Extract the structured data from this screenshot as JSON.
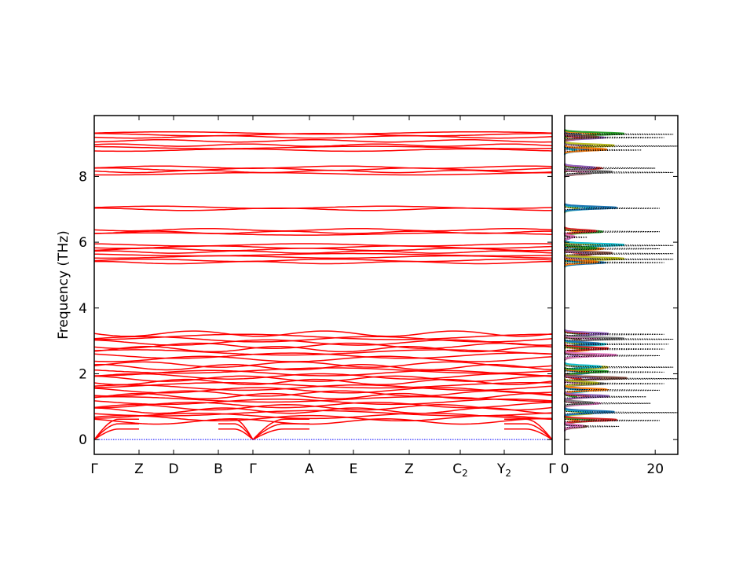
{
  "chart_data": [
    {
      "type": "line",
      "ylabel": "Frequency (THz)",
      "ylim": [
        -0.45,
        9.85
      ],
      "y_ticks": [
        0,
        2,
        4,
        6,
        8
      ],
      "x_tick_labels": [
        {
          "base": "Γ",
          "sub": ""
        },
        {
          "base": "Z",
          "sub": ""
        },
        {
          "base": "D",
          "sub": ""
        },
        {
          "base": "B",
          "sub": ""
        },
        {
          "base": "Γ",
          "sub": ""
        },
        {
          "base": "A",
          "sub": ""
        },
        {
          "base": "E",
          "sub": ""
        },
        {
          "base": "Z",
          "sub": ""
        },
        {
          "base": "C",
          "sub": "2"
        },
        {
          "base": "Y",
          "sub": "2"
        },
        {
          "base": "Γ",
          "sub": ""
        }
      ],
      "band_color": "#ff0000",
      "zero_line_color": "#0000ff",
      "band_levels": [
        9.32,
        9.27,
        9.2,
        9.08,
        8.95,
        8.88,
        8.8,
        8.28,
        8.22,
        8.15,
        8.08,
        7.06,
        7.0,
        6.38,
        6.3,
        6.25,
        5.92,
        5.85,
        5.78,
        5.7,
        5.62,
        5.55,
        5.45,
        5.38,
        3.22,
        3.12,
        3.05,
        2.95,
        2.85,
        2.75,
        2.65,
        2.55,
        2.45,
        2.28,
        2.2,
        2.1,
        2.02,
        1.92,
        1.85,
        1.75,
        1.65,
        1.58,
        1.5,
        1.4,
        1.32,
        1.22,
        1.15,
        1.05,
        0.98,
        0.88,
        0.8,
        0.72,
        0.65,
        0.55
      ]
    },
    {
      "type": "line",
      "title": "",
      "xlim": [
        0,
        25
      ],
      "x_ticks": [
        0,
        20
      ],
      "dos_peaks": [
        {
          "f": 9.28,
          "total": 24
        },
        {
          "f": 9.18,
          "total": 22
        },
        {
          "f": 8.92,
          "total": 25
        },
        {
          "f": 8.8,
          "total": 17
        },
        {
          "f": 8.25,
          "total": 20
        },
        {
          "f": 8.12,
          "total": 24
        },
        {
          "f": 7.03,
          "total": 21
        },
        {
          "f": 6.32,
          "total": 21
        },
        {
          "f": 6.15,
          "total": 5
        },
        {
          "f": 5.9,
          "total": 24
        },
        {
          "f": 5.8,
          "total": 21
        },
        {
          "f": 5.65,
          "total": 24
        },
        {
          "f": 5.48,
          "total": 24
        },
        {
          "f": 5.38,
          "total": 22
        },
        {
          "f": 3.2,
          "total": 22
        },
        {
          "f": 3.05,
          "total": 24
        },
        {
          "f": 2.9,
          "total": 23
        },
        {
          "f": 2.75,
          "total": 22
        },
        {
          "f": 2.55,
          "total": 21
        },
        {
          "f": 2.2,
          "total": 24
        },
        {
          "f": 2.05,
          "total": 22
        },
        {
          "f": 1.85,
          "total": 25
        },
        {
          "f": 1.7,
          "total": 22
        },
        {
          "f": 1.5,
          "total": 21
        },
        {
          "f": 1.3,
          "total": 18
        },
        {
          "f": 1.1,
          "total": 19
        },
        {
          "f": 0.82,
          "total": 25
        },
        {
          "f": 0.58,
          "total": 21
        },
        {
          "f": 0.4,
          "total": 12
        }
      ],
      "pdos_colors": [
        "#1f77b4",
        "#ff7f0e",
        "#2ca02c",
        "#d62728",
        "#9467bd",
        "#8c564b",
        "#e377c2",
        "#7f7f7f",
        "#bcbd22",
        "#17becf"
      ],
      "total_line_color": "#000000"
    }
  ]
}
